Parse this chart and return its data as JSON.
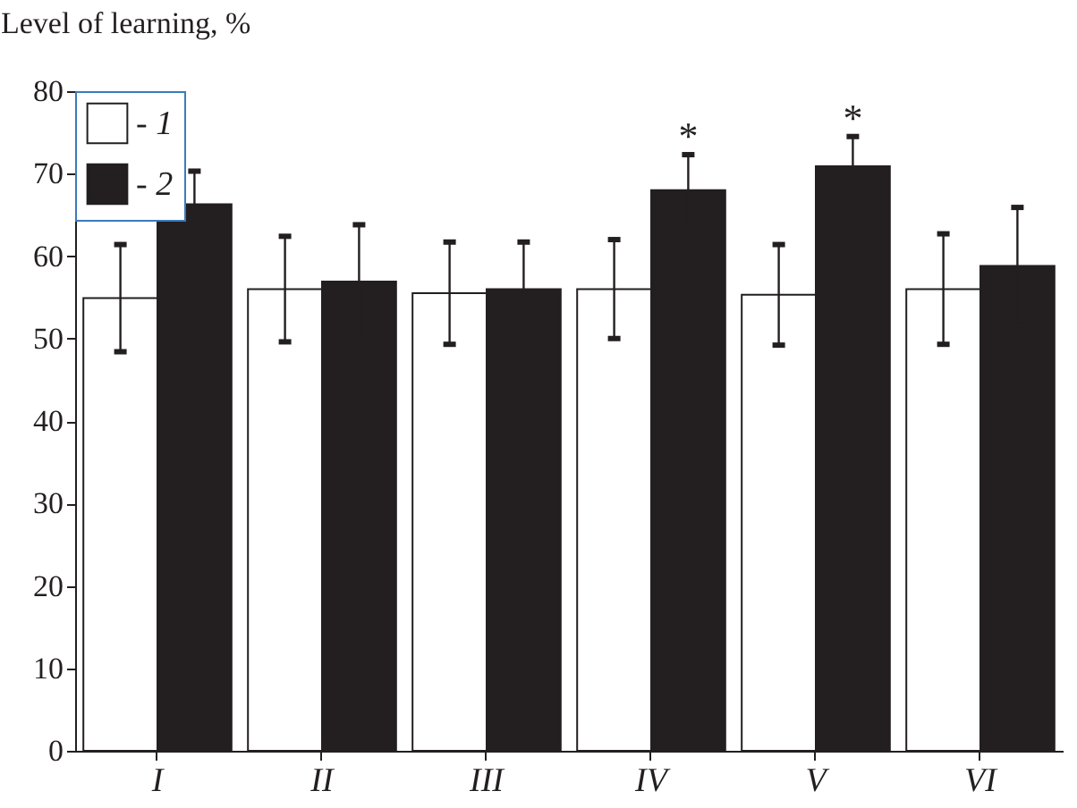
{
  "chart_data": {
    "type": "bar",
    "ylabel": "Level of learning, %",
    "categories": [
      "I",
      "II",
      "III",
      "IV",
      "V",
      "VI"
    ],
    "series": [
      {
        "name": "- 1",
        "color": "#ffffff",
        "values": [
          54.9,
          56.0,
          55.5,
          56.0,
          55.3,
          56.0
        ],
        "errors": [
          6.5,
          6.4,
          6.2,
          6.0,
          6.1,
          6.7
        ]
      },
      {
        "name": "- 2",
        "color": "#231f20",
        "values": [
          66.3,
          56.9,
          56.0,
          68.0,
          70.9,
          58.8
        ],
        "errors": [
          4.0,
          6.9,
          5.7,
          4.3,
          3.6,
          7.1
        ]
      }
    ],
    "ylim": [
      0,
      80
    ],
    "yticks": [
      0,
      10,
      20,
      30,
      40,
      50,
      60,
      70,
      80
    ],
    "grid": false,
    "legend": "top left",
    "annotations": [
      {
        "text": "*",
        "x": "IV",
        "y": 68.0
      },
      {
        "text": "*",
        "x": "V",
        "y": 70.9
      }
    ]
  }
}
